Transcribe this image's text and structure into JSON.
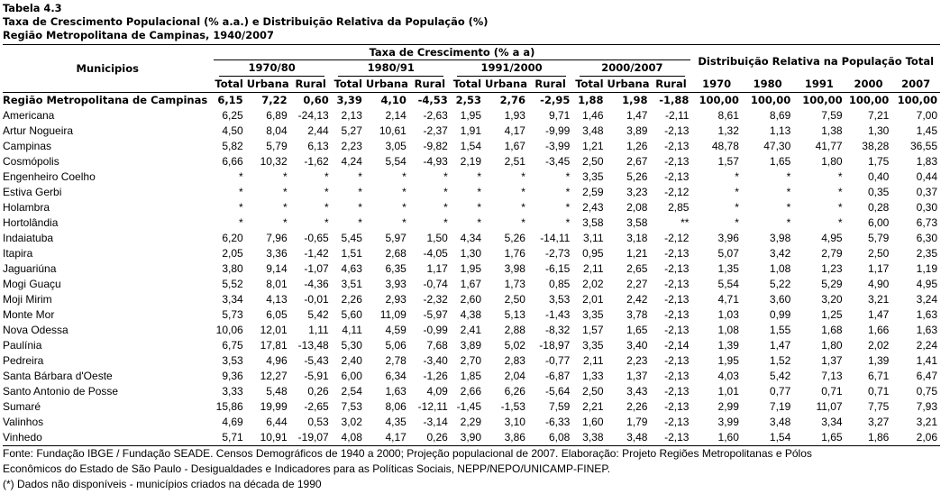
{
  "title": {
    "line1": "Tabela 4.3",
    "line2": "Taxa de Crescimento Populacional (% a.a.) e Distribuição Relativa da População (%)",
    "line3": "Região Metropolitana de Campinas, 1940/2007"
  },
  "header": {
    "municipios": "Municipios",
    "taxa": "Taxa de Crescimento (% a a)",
    "distribuicao": "Distribuição Relativa na População Total",
    "periods": [
      "1970/80",
      "1980/91",
      "1991/2000",
      "2000/2007"
    ],
    "sub": [
      "Total",
      "Urbana",
      "Rural"
    ],
    "years": [
      "1970",
      "1980",
      "1991",
      "2000",
      "2007"
    ]
  },
  "rows": [
    {
      "name": "Região Metropolitana de Campinas",
      "values": [
        "6,15",
        "7,22",
        "0,60",
        "3,39",
        "4,10",
        "-4,53",
        "2,53",
        "2,76",
        "-2,95",
        "1,88",
        "1,98",
        "-1,88",
        "100,00",
        "100,00",
        "100,00",
        "100,00",
        "100,00"
      ]
    },
    {
      "name": "Americana",
      "values": [
        "6,25",
        "6,89",
        "-24,13",
        "2,13",
        "2,14",
        "-2,63",
        "1,95",
        "1,93",
        "9,71",
        "1,46",
        "1,47",
        "-2,11",
        "8,61",
        "8,69",
        "7,59",
        "7,21",
        "7,00"
      ]
    },
    {
      "name": "Artur Nogueira",
      "values": [
        "4,50",
        "8,04",
        "2,44",
        "5,27",
        "10,61",
        "-2,37",
        "1,91",
        "4,17",
        "-9,99",
        "3,48",
        "3,89",
        "-2,13",
        "1,32",
        "1,13",
        "1,38",
        "1,30",
        "1,45"
      ]
    },
    {
      "name": "Campinas",
      "values": [
        "5,82",
        "5,79",
        "6,13",
        "2,23",
        "3,05",
        "-9,82",
        "1,54",
        "1,67",
        "-3,99",
        "1,21",
        "1,26",
        "-2,13",
        "48,78",
        "47,30",
        "41,77",
        "38,28",
        "36,55"
      ]
    },
    {
      "name": "Cosmópolis",
      "values": [
        "6,66",
        "10,32",
        "-1,62",
        "4,24",
        "5,54",
        "-4,93",
        "2,19",
        "2,51",
        "-3,45",
        "2,50",
        "2,67",
        "-2,13",
        "1,57",
        "1,65",
        "1,80",
        "1,75",
        "1,83"
      ]
    },
    {
      "name": "Engenheiro Coelho",
      "values": [
        "*",
        "*",
        "*",
        "*",
        "*",
        "*",
        "*",
        "*",
        "*",
        "3,35",
        "5,26",
        "-2,13",
        "*",
        "*",
        "*",
        "0,40",
        "0,44"
      ]
    },
    {
      "name": "Estiva Gerbi",
      "values": [
        "*",
        "*",
        "*",
        "*",
        "*",
        "*",
        "*",
        "*",
        "*",
        "2,59",
        "3,23",
        "-2,12",
        "*",
        "*",
        "*",
        "0,35",
        "0,37"
      ]
    },
    {
      "name": "Holambra",
      "values": [
        "*",
        "*",
        "*",
        "*",
        "*",
        "*",
        "*",
        "*",
        "*",
        "2,43",
        "2,08",
        "2,85",
        "*",
        "*",
        "*",
        "0,28",
        "0,30"
      ]
    },
    {
      "name": "Hortolândia",
      "values": [
        "*",
        "*",
        "*",
        "*",
        "*",
        "*",
        "*",
        "*",
        "*",
        "3,58",
        "3,58",
        "**",
        "*",
        "*",
        "*",
        "6,00",
        "6,73"
      ]
    },
    {
      "name": "Indaiatuba",
      "values": [
        "6,20",
        "7,96",
        "-0,65",
        "5,45",
        "5,97",
        "1,50",
        "4,34",
        "5,26",
        "-14,11",
        "3,11",
        "3,18",
        "-2,12",
        "3,96",
        "3,98",
        "4,95",
        "5,79",
        "6,30"
      ]
    },
    {
      "name": "Itapira",
      "values": [
        "2,05",
        "3,36",
        "-1,42",
        "1,51",
        "2,68",
        "-4,05",
        "1,30",
        "1,76",
        "-2,73",
        "0,95",
        "1,21",
        "-2,13",
        "5,07",
        "3,42",
        "2,79",
        "2,50",
        "2,35"
      ]
    },
    {
      "name": "Jaguariúna",
      "values": [
        "3,80",
        "9,14",
        "-1,07",
        "4,63",
        "6,35",
        "1,17",
        "1,95",
        "3,98",
        "-6,15",
        "2,11",
        "2,65",
        "-2,13",
        "1,35",
        "1,08",
        "1,23",
        "1,17",
        "1,19"
      ]
    },
    {
      "name": "Mogi Guaçu",
      "values": [
        "5,52",
        "8,01",
        "-4,36",
        "3,51",
        "3,93",
        "-0,74",
        "1,67",
        "1,73",
        "0,85",
        "2,02",
        "2,27",
        "-2,13",
        "5,54",
        "5,22",
        "5,29",
        "4,90",
        "4,95"
      ]
    },
    {
      "name": "Moji Mirim",
      "values": [
        "3,34",
        "4,13",
        "-0,01",
        "2,26",
        "2,93",
        "-2,32",
        "2,60",
        "2,50",
        "3,53",
        "2,01",
        "2,42",
        "-2,13",
        "4,71",
        "3,60",
        "3,20",
        "3,21",
        "3,24"
      ]
    },
    {
      "name": "Monte Mor",
      "values": [
        "5,73",
        "6,05",
        "5,42",
        "5,60",
        "11,09",
        "-5,97",
        "4,38",
        "5,13",
        "-1,43",
        "3,35",
        "3,78",
        "-2,13",
        "1,03",
        "0,99",
        "1,25",
        "1,47",
        "1,63"
      ]
    },
    {
      "name": "Nova Odessa",
      "values": [
        "10,06",
        "12,01",
        "1,11",
        "4,11",
        "4,59",
        "-0,99",
        "2,41",
        "2,88",
        "-8,32",
        "1,57",
        "1,65",
        "-2,13",
        "1,08",
        "1,55",
        "1,68",
        "1,66",
        "1,63"
      ]
    },
    {
      "name": "Paulínia",
      "values": [
        "6,75",
        "17,81",
        "-13,48",
        "5,30",
        "5,06",
        "7,68",
        "3,89",
        "5,02",
        "-18,97",
        "3,35",
        "3,40",
        "-2,14",
        "1,39",
        "1,47",
        "1,80",
        "2,02",
        "2,24"
      ]
    },
    {
      "name": "Pedreira",
      "values": [
        "3,53",
        "4,96",
        "-5,43",
        "2,40",
        "2,78",
        "-3,40",
        "2,70",
        "2,83",
        "-0,77",
        "2,11",
        "2,23",
        "-2,13",
        "1,95",
        "1,52",
        "1,37",
        "1,39",
        "1,41"
      ]
    },
    {
      "name": "Santa Bárbara d'Oeste",
      "values": [
        "9,36",
        "12,27",
        "-5,91",
        "6,00",
        "6,34",
        "-1,26",
        "1,85",
        "2,04",
        "-6,87",
        "1,33",
        "1,37",
        "-2,13",
        "4,03",
        "5,42",
        "7,13",
        "6,71",
        "6,47"
      ]
    },
    {
      "name": "Santo Antonio de Posse",
      "values": [
        "3,33",
        "5,48",
        "0,26",
        "2,54",
        "1,63",
        "4,09",
        "2,66",
        "6,26",
        "-5,64",
        "2,50",
        "3,43",
        "-2,13",
        "1,01",
        "0,77",
        "0,71",
        "0,71",
        "0,75"
      ]
    },
    {
      "name": "Sumaré",
      "values": [
        "15,86",
        "19,99",
        "-2,65",
        "7,53",
        "8,06",
        "-12,11",
        "-1,45",
        "-1,53",
        "7,59",
        "2,21",
        "2,26",
        "-2,13",
        "2,99",
        "7,19",
        "11,07",
        "7,75",
        "7,93"
      ]
    },
    {
      "name": "Valinhos",
      "values": [
        "4,69",
        "6,44",
        "0,53",
        "3,02",
        "4,35",
        "-3,14",
        "2,29",
        "3,10",
        "-6,33",
        "1,60",
        "1,79",
        "-2,13",
        "3,99",
        "3,48",
        "3,34",
        "3,27",
        "3,21"
      ]
    },
    {
      "name": "Vinhedo",
      "values": [
        "5,71",
        "10,91",
        "-19,07",
        "4,08",
        "4,17",
        "0,26",
        "3,90",
        "3,86",
        "6,08",
        "3,38",
        "3,48",
        "-2,13",
        "1,60",
        "1,54",
        "1,65",
        "1,86",
        "2,06"
      ]
    }
  ],
  "footer": {
    "line1": "Fonte: Fundação IBGE / Fundação SEADE. Censos Demográficos de 1940 a 2000; Projeção populacional de 2007. Elaboração: Projeto Regiões Metropolitanas e Pólos",
    "line2": "Econômicos do Estado de São Paulo - Desigualdades e Indicadores para as Políticas Sociais, NEPP/NEPO/UNICAMP-FINEP.",
    "line3": "(*) Dados não disponíveis - municípios criados na década de 1990"
  }
}
